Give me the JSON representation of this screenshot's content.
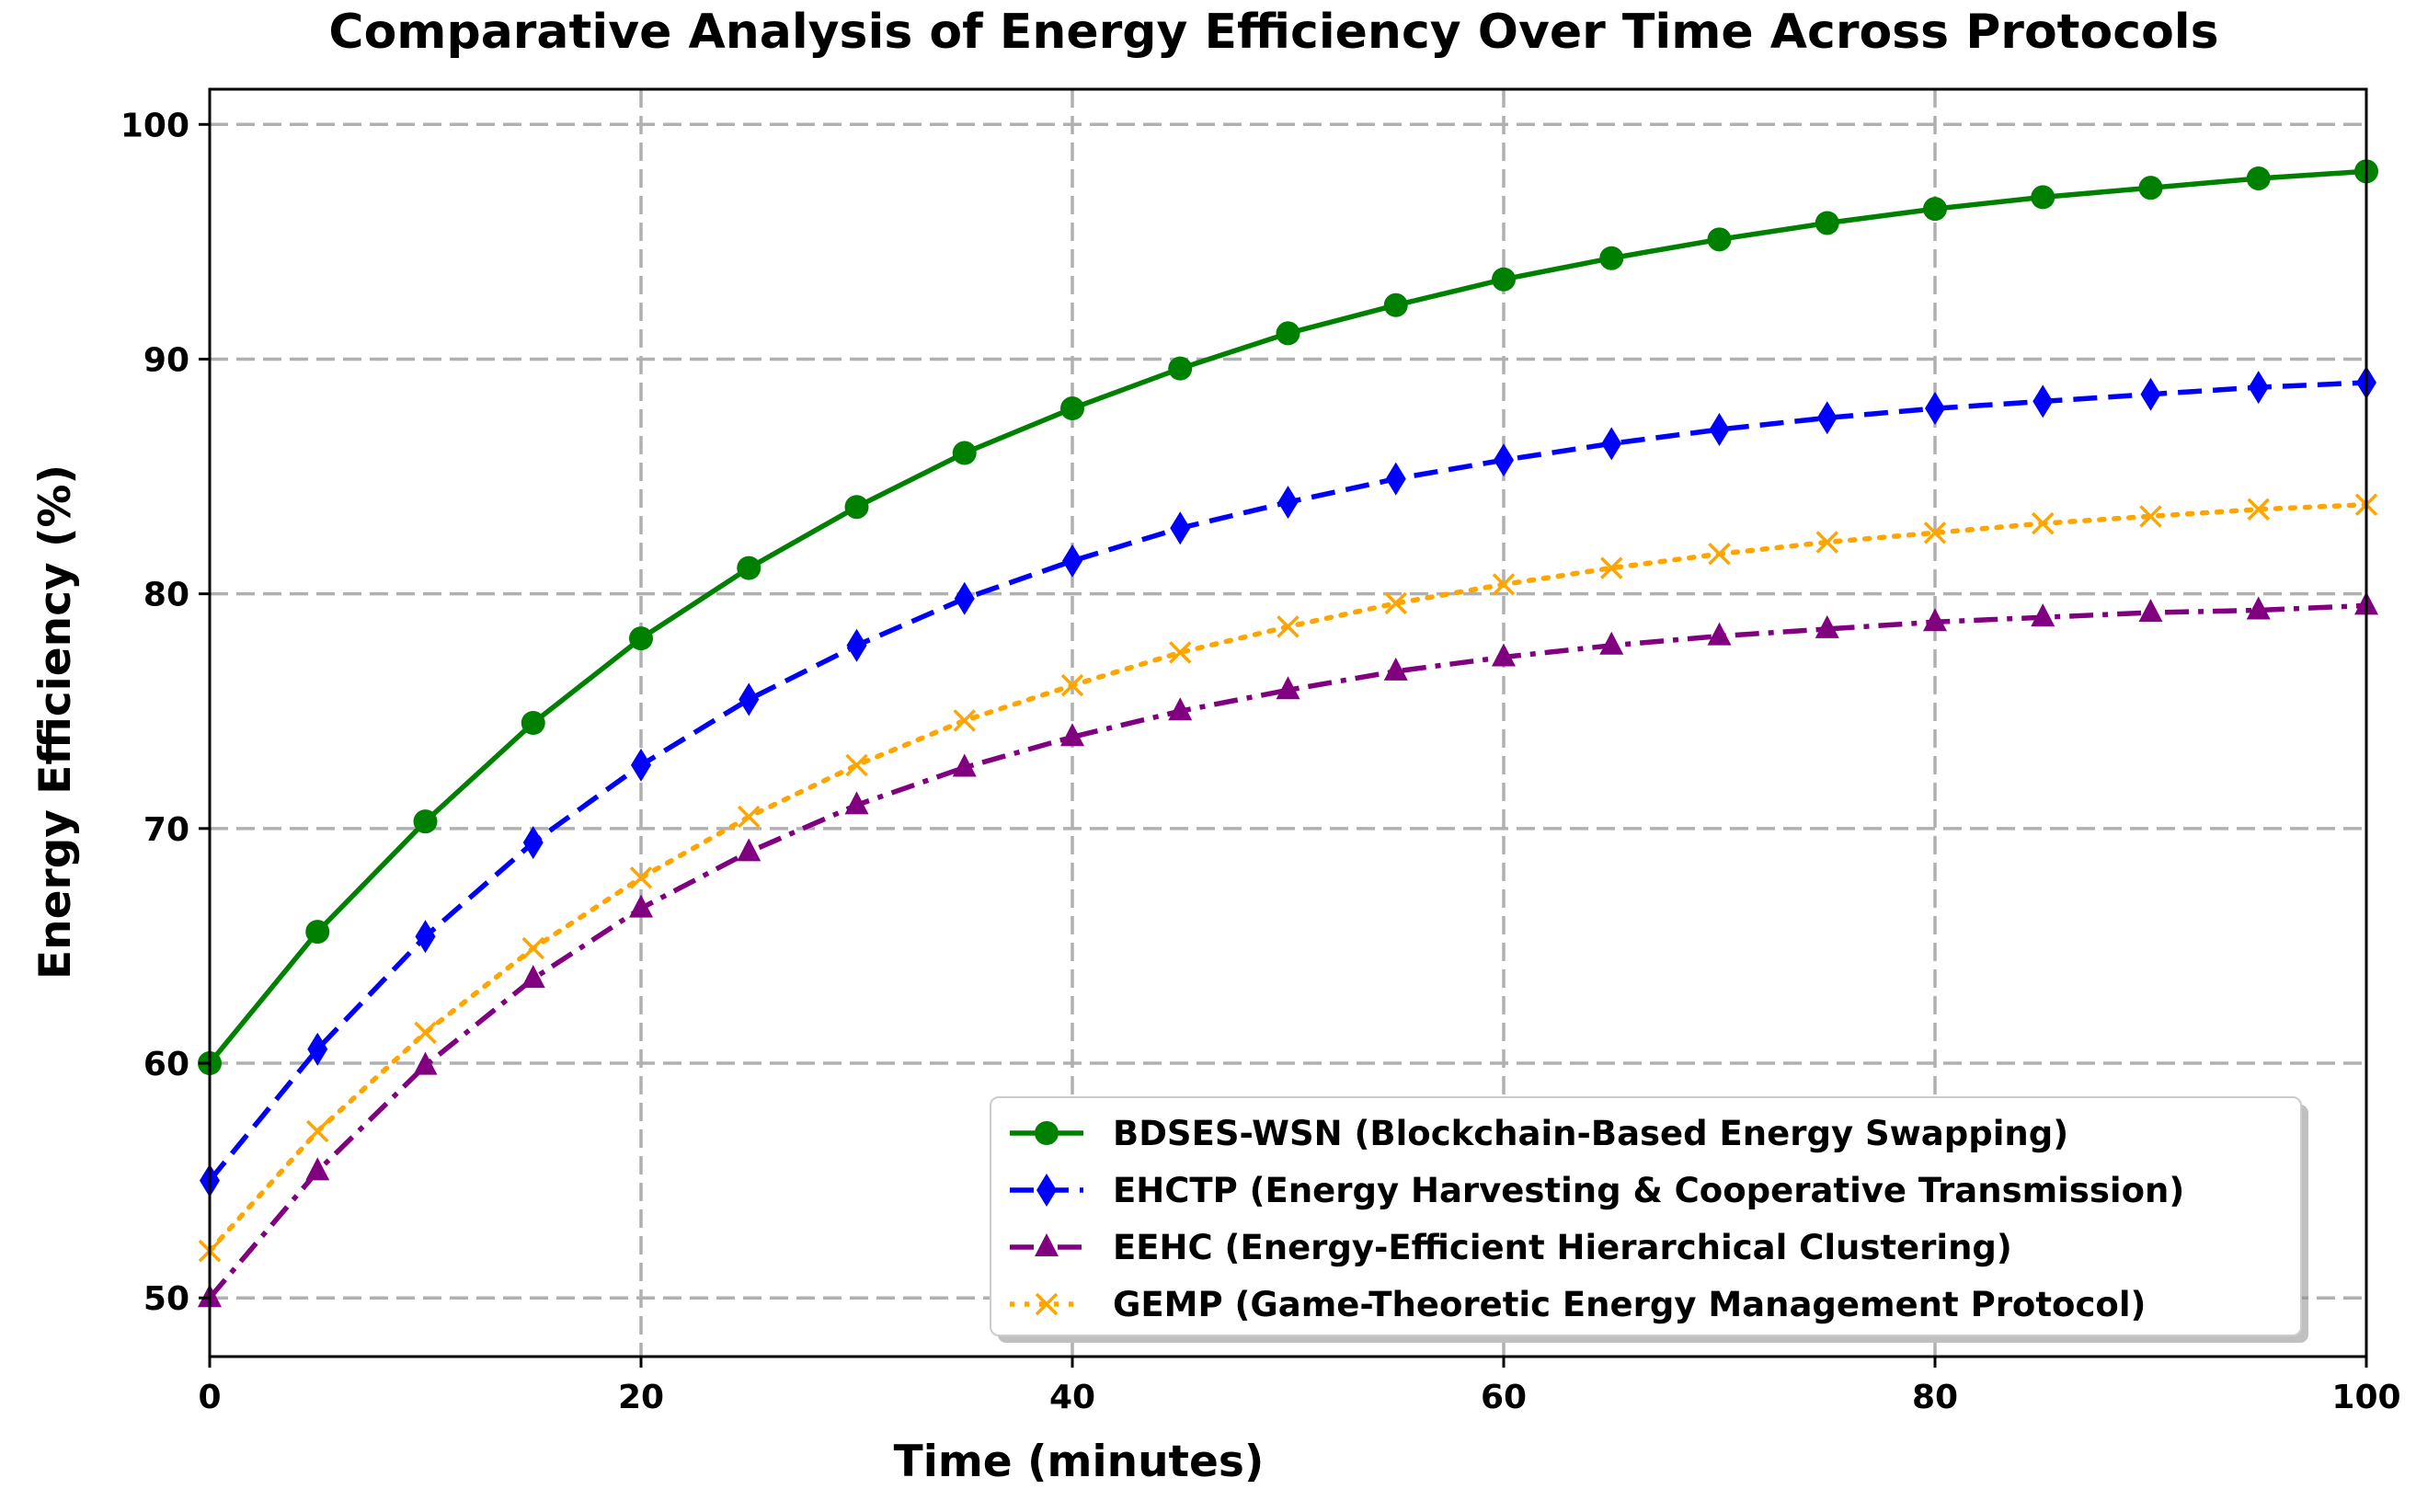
{
  "chart_data": {
    "type": "line",
    "title": "Comparative Analysis of Energy Efficiency Over Time Across Protocols",
    "xlabel": "Time (minutes)",
    "ylabel": "Energy Efficiency (%)",
    "xlim": [
      0,
      100
    ],
    "ylim": [
      47.5,
      101.5
    ],
    "xticks": [
      0,
      20,
      40,
      60,
      80,
      100
    ],
    "yticks": [
      50,
      60,
      70,
      80,
      90,
      100
    ],
    "grid": true,
    "legend_position": "lower-right",
    "x": [
      0,
      5,
      10,
      15,
      20,
      25,
      30,
      35,
      40,
      45,
      50,
      55,
      60,
      65,
      70,
      75,
      80,
      85,
      90,
      95,
      100
    ],
    "series": [
      {
        "name": "BDSES-WSN (Blockchain-Based Energy Swapping)",
        "color": "#008000",
        "linestyle": "solid",
        "marker": "circle",
        "values": [
          60.0,
          65.6,
          70.3,
          74.5,
          78.1,
          81.1,
          83.7,
          86.0,
          87.9,
          89.6,
          91.1,
          92.3,
          93.4,
          94.3,
          95.1,
          95.8,
          96.4,
          96.9,
          97.3,
          97.7,
          98.0
        ]
      },
      {
        "name": "EHCTP (Energy Harvesting & Cooperative Transmission)",
        "color": "#0000ff",
        "linestyle": "dashed",
        "marker": "diamond",
        "values": [
          55.0,
          60.6,
          65.4,
          69.4,
          72.7,
          75.5,
          77.8,
          79.8,
          81.4,
          82.8,
          83.9,
          84.9,
          85.7,
          86.4,
          87.0,
          87.5,
          87.9,
          88.2,
          88.5,
          88.8,
          89.0
        ]
      },
      {
        "name": "EEHC (Energy-Efficient Hierarchical Clustering)",
        "color": "#800080",
        "linestyle": "dashdot",
        "marker": "triangle",
        "values": [
          50.0,
          55.4,
          59.9,
          63.6,
          66.6,
          69.0,
          71.0,
          72.6,
          73.9,
          75.0,
          75.9,
          76.7,
          77.3,
          77.8,
          78.2,
          78.5,
          78.8,
          79.0,
          79.2,
          79.3,
          79.5
        ]
      },
      {
        "name": "GEMP (Game-Theoretic Energy Management Protocol)",
        "color": "#ffa500",
        "linestyle": "dotted",
        "marker": "x",
        "values": [
          52.0,
          57.1,
          61.3,
          64.9,
          67.9,
          70.5,
          72.7,
          74.6,
          76.1,
          77.5,
          78.6,
          79.6,
          80.4,
          81.1,
          81.7,
          82.2,
          82.6,
          83.0,
          83.3,
          83.6,
          83.8
        ]
      }
    ]
  }
}
